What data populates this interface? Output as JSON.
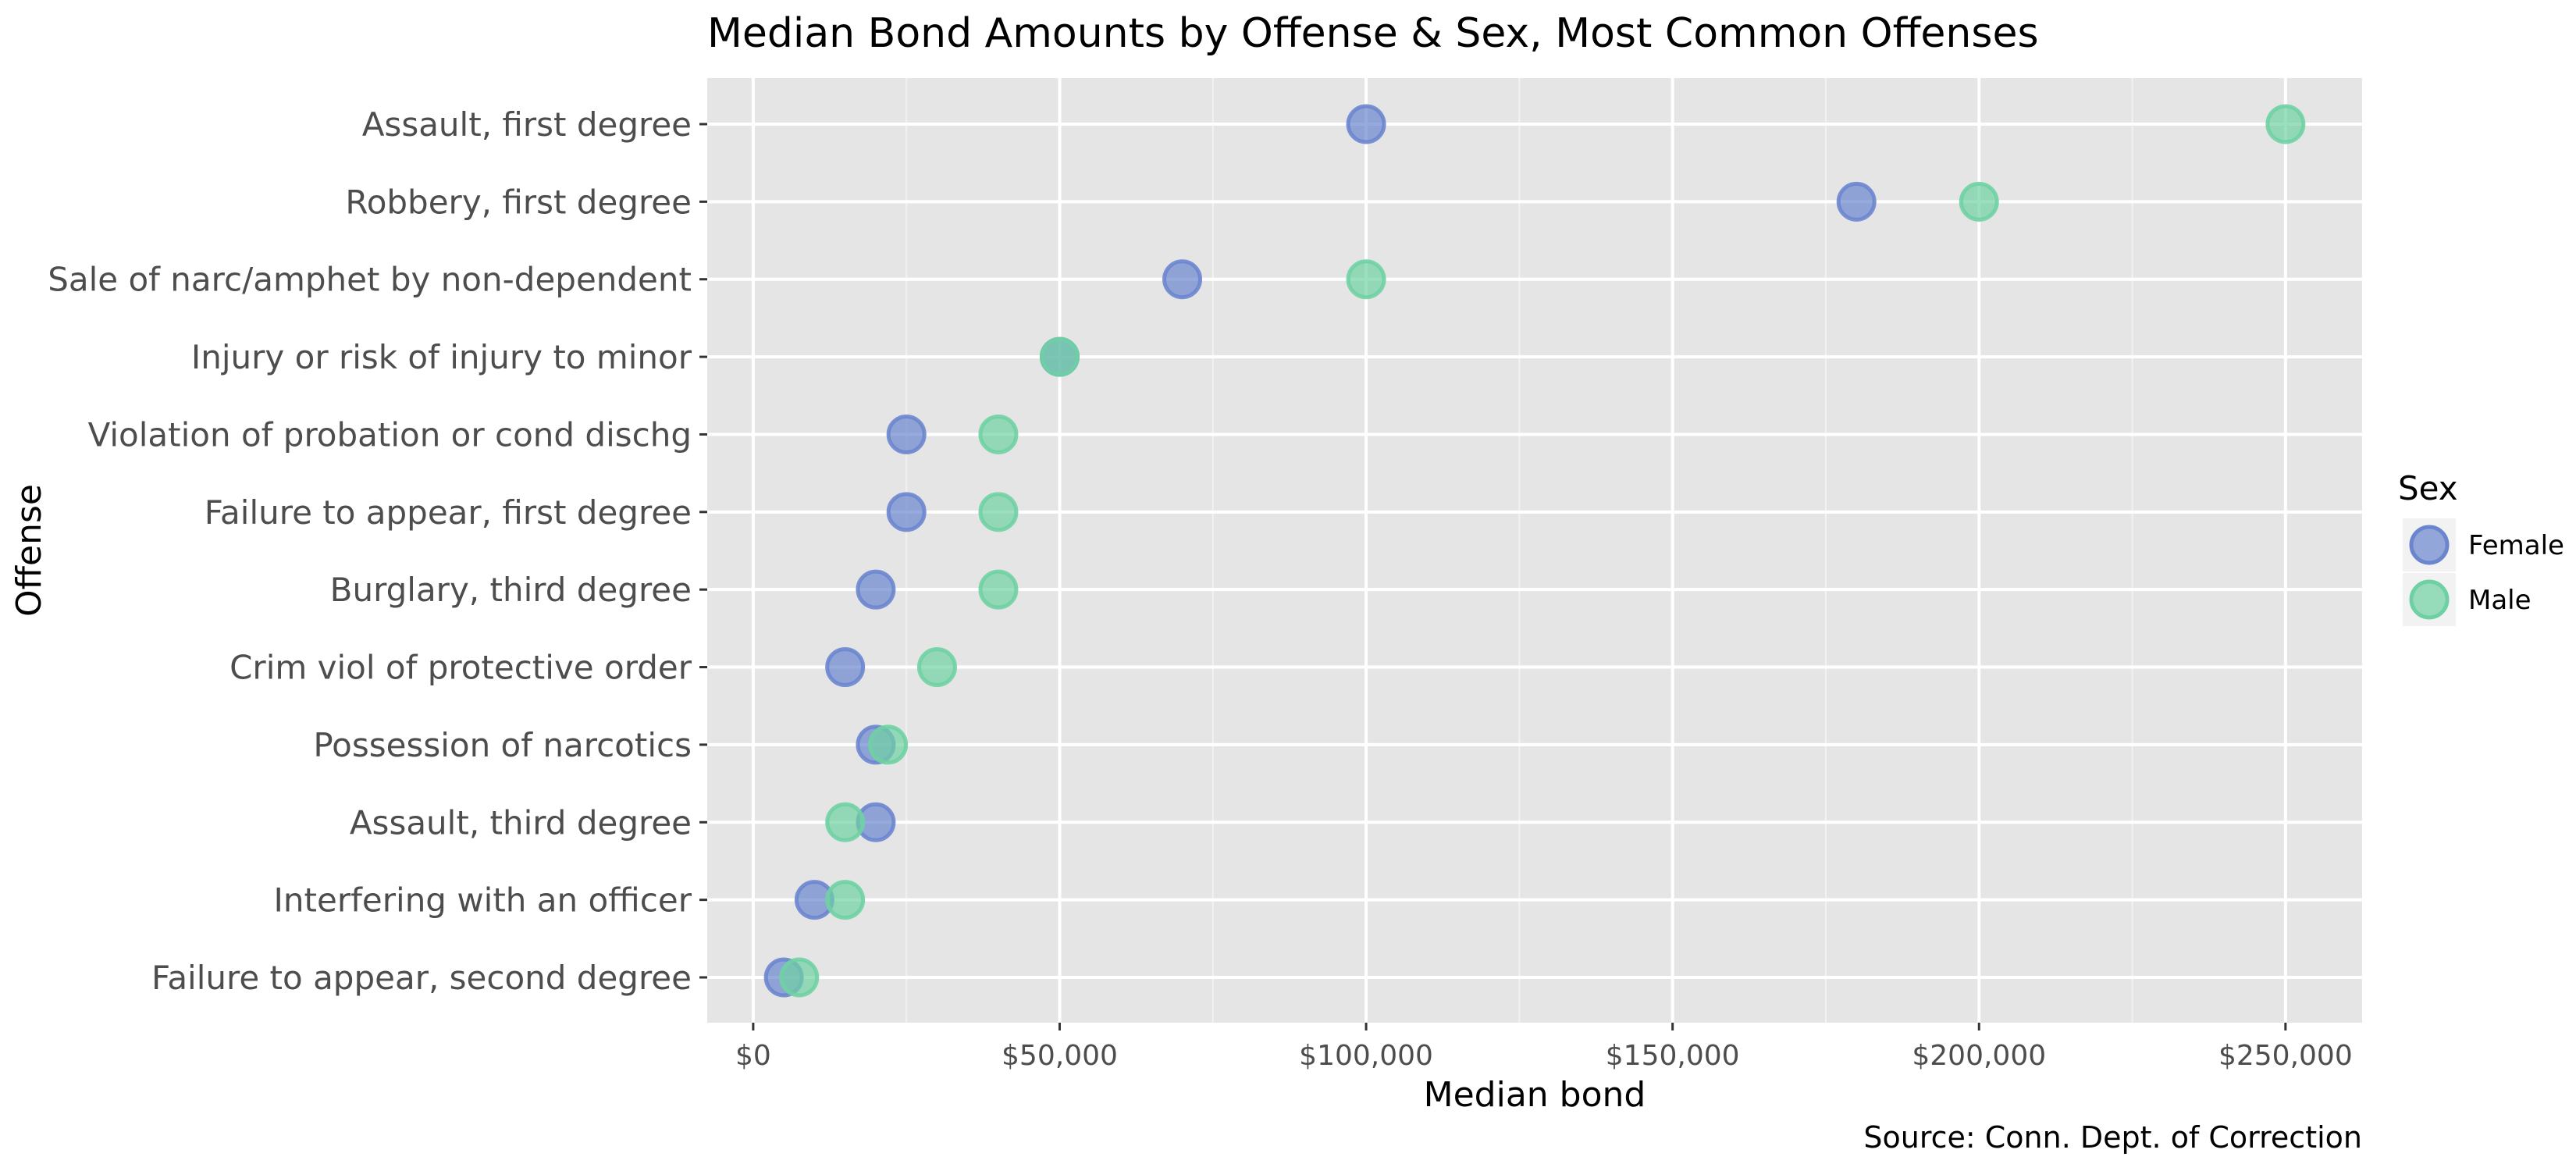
{
  "chart_data": {
    "type": "scatter",
    "title": "Median Bond Amounts by Offense & Sex, Most Common Offenses",
    "xlabel": "Median bond",
    "ylabel": "Offense",
    "caption": "Source: Conn. Dept. of Correction",
    "xlim": [
      -7500,
      262500
    ],
    "x_ticks": [
      0,
      50000,
      100000,
      150000,
      200000,
      250000
    ],
    "x_tick_labels": [
      "$0",
      "$50,000",
      "$100,000",
      "$150,000",
      "$200,000",
      "$250,000"
    ],
    "grid": true,
    "legend": {
      "title": "Sex",
      "position": "right",
      "entries": [
        "Female",
        "Male"
      ]
    },
    "categories": [
      "Assault, first degree",
      "Robbery, first degree",
      "Sale of narc/amphet by non-dependent",
      "Injury or risk of injury to minor",
      "Violation of probation or cond dischg",
      "Failure to appear, first degree",
      "Burglary, third degree",
      "Crim viol of protective order",
      "Possession of narcotics",
      "Assault, third degree",
      "Interfering with an officer",
      "Failure to appear, second degree"
    ],
    "series": [
      {
        "name": "Female",
        "color": "#6b86cf",
        "values": [
          100000,
          180000,
          70000,
          50000,
          25000,
          25000,
          20000,
          15000,
          20000,
          20000,
          10000,
          5000
        ]
      },
      {
        "name": "Male",
        "color": "#6fd1a3",
        "values": [
          250000,
          200000,
          100000,
          50000,
          40000,
          40000,
          40000,
          30000,
          22000,
          15000,
          15000,
          7500
        ]
      }
    ]
  }
}
